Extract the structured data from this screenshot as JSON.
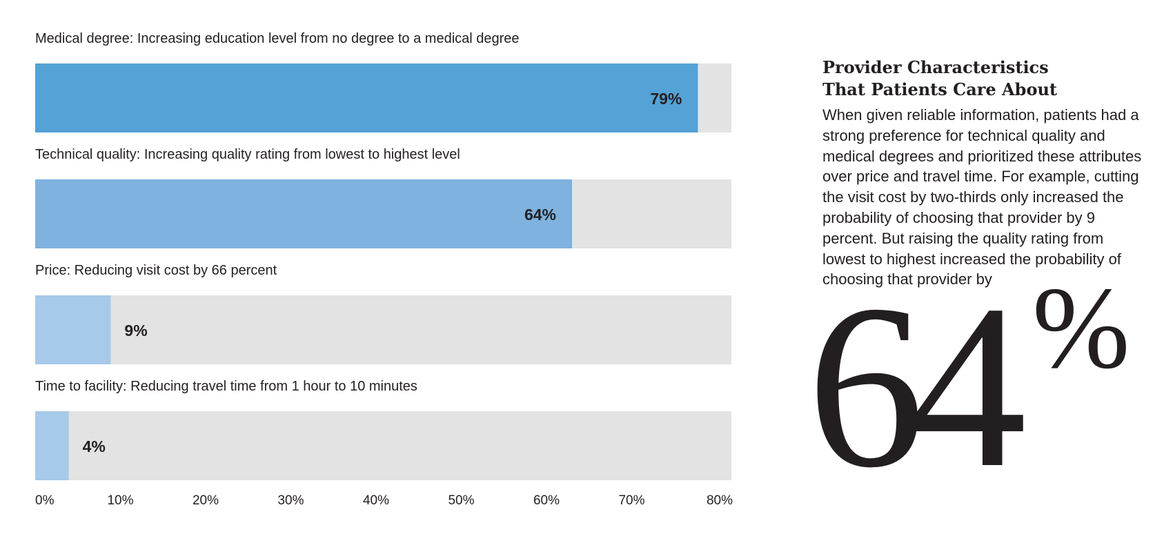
{
  "chart_data": {
    "type": "bar",
    "orientation": "horizontal",
    "categories": [
      "Medical degree: Increasing education level from no degree to a medical degree",
      "Technical quality: Increasing quality rating from lowest to highest level",
      "Price: Reducing visit cost by 66 percent",
      "Time to facility: Reducing travel time from 1 hour to 10 minutes"
    ],
    "values": [
      79,
      64,
      9,
      4
    ],
    "value_labels": [
      "79%",
      "64%",
      "9%",
      "4%"
    ],
    "bar_colors": [
      "#54a2d6",
      "#7fb2de",
      "#a7c9ea",
      "#a7c9ea"
    ],
    "track_color": "#e3e3e4",
    "xlim": [
      0,
      83
    ],
    "xticks": [
      0,
      10,
      20,
      30,
      40,
      50,
      60,
      70,
      80
    ],
    "xtick_labels": [
      "0%",
      "10%",
      "20%",
      "30%",
      "40%",
      "50%",
      "60%",
      "70%",
      "80%"
    ],
    "grid": false,
    "legend": "none"
  },
  "side": {
    "title_line1": "Provider Characteristics",
    "title_line2": "That Patients Care About",
    "body": "When given reliable information, patients had a strong preference for technical quality and medical degrees and prioritized these attributes over price and travel time. For example, cutting the visit cost by two-thirds only increased the probability of choosing that provider by 9 percent. But raising the quality rating from lowest to highest increased the probability of choosing that provider by",
    "big_number": "64",
    "big_percent": "%"
  },
  "colors": {
    "text": "#231f20",
    "background": "#ffffff"
  }
}
